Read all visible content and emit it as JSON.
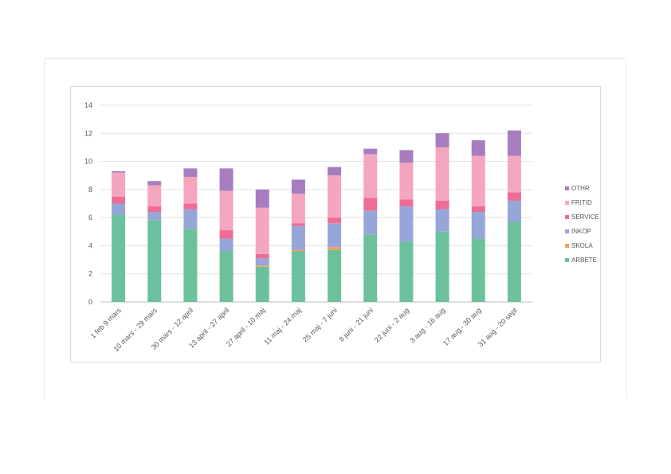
{
  "chart_data": {
    "type": "bar",
    "stacked": true,
    "title": "",
    "xlabel": "",
    "ylabel": "",
    "ylim": [
      0,
      14
    ],
    "yticks": [
      0,
      2,
      4,
      6,
      8,
      10,
      12,
      14
    ],
    "grid": true,
    "legend_position": "right",
    "categories": [
      "1 feb 9 mars",
      "10 mars - 29 mars",
      "30 mars - 12 april",
      "13 april - 27 april",
      "27 april - 10 maj",
      "11 maj - 24 maj",
      "25 maj - 7 juni",
      "8 juni - 21 juni",
      "22 juni - 2 aug",
      "3 aug - 16 aug",
      "17 aug - 30 aug",
      "31 aug - 20 sept"
    ],
    "series": [
      {
        "name": "ARBETE",
        "color": "#6cc19c",
        "values": [
          6.2,
          5.8,
          5.2,
          3.6,
          2.5,
          3.6,
          3.7,
          4.8,
          4.3,
          5.0,
          4.5,
          5.7
        ]
      },
      {
        "name": "SKOLA",
        "color": "#f0a05a",
        "values": [
          0.0,
          0.0,
          0.0,
          0.0,
          0.1,
          0.1,
          0.2,
          0.0,
          0.0,
          0.0,
          0.0,
          0.0
        ]
      },
      {
        "name": "INKÖP",
        "color": "#96a6d8",
        "values": [
          0.8,
          0.6,
          1.4,
          0.9,
          0.5,
          1.7,
          1.7,
          1.7,
          2.5,
          1.6,
          1.9,
          1.5
        ]
      },
      {
        "name": "SERVICE",
        "color": "#ee6d96",
        "values": [
          0.5,
          0.4,
          0.4,
          0.6,
          0.3,
          0.2,
          0.4,
          0.9,
          0.5,
          0.6,
          0.4,
          0.6
        ]
      },
      {
        "name": "FRITID",
        "color": "#f4a6bf",
        "values": [
          1.7,
          1.5,
          1.9,
          2.8,
          3.3,
          2.1,
          3.0,
          3.1,
          2.6,
          3.8,
          3.6,
          2.6
        ]
      },
      {
        "name": "OTHR",
        "color": "#a77dbf",
        "values": [
          0.1,
          0.3,
          0.6,
          1.6,
          1.3,
          1.0,
          0.6,
          0.4,
          0.9,
          1.0,
          1.1,
          1.8
        ]
      }
    ]
  }
}
